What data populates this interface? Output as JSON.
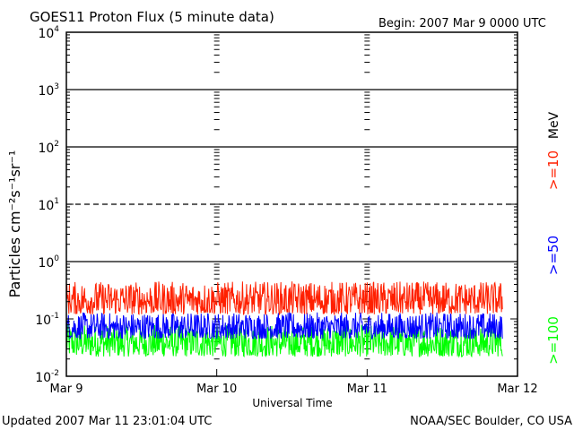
{
  "header": {
    "title": "GOES11 Proton Flux (5 minute data)",
    "begin": "Begin: 2007 Mar 9 0000 UTC"
  },
  "footer": {
    "updated": "Updated 2007 Mar 11 23:01:04 UTC",
    "source": "NOAA/SEC Boulder, CO USA"
  },
  "chart_data": {
    "type": "line",
    "title": "GOES11 Proton Flux (5 minute data)",
    "xlabel": "Universal Time",
    "ylabel": "Particles cm⁻²s⁻¹sr⁻¹",
    "x_ticks": [
      "Mar 9",
      "Mar 10",
      "Mar 11",
      "Mar 12"
    ],
    "y_ticks": [
      {
        "base": "10",
        "exp": "-2",
        "value": 0.01
      },
      {
        "base": "10",
        "exp": "-1",
        "value": 0.1
      },
      {
        "base": "10",
        "exp": "0",
        "value": 1
      },
      {
        "base": "10",
        "exp": "1",
        "value": 10
      },
      {
        "base": "10",
        "exp": "2",
        "value": 100
      },
      {
        "base": "10",
        "exp": "3",
        "value": 1000
      },
      {
        "base": "10",
        "exp": "4",
        "value": 10000
      }
    ],
    "ylim": [
      0.01,
      10000
    ],
    "xlim_days": [
      0,
      3
    ],
    "y_scale": "log",
    "unit_label": "MeV",
    "series": [
      {
        "name": ">=10",
        "color": "#ff2000",
        "typical_value": 0.2,
        "low": 0.12,
        "high": 0.45
      },
      {
        "name": ">=50",
        "color": "#0000ff",
        "typical_value": 0.07,
        "low": 0.045,
        "high": 0.13
      },
      {
        "name": ">=100",
        "color": "#00ff00",
        "typical_value": 0.04,
        "low": 0.022,
        "high": 0.08
      }
    ],
    "reference_lines": [
      {
        "value": 1,
        "style": "solid"
      },
      {
        "value": 10,
        "style": "dashed"
      },
      {
        "value": 100,
        "style": "solid"
      },
      {
        "value": 1000,
        "style": "solid"
      }
    ]
  }
}
